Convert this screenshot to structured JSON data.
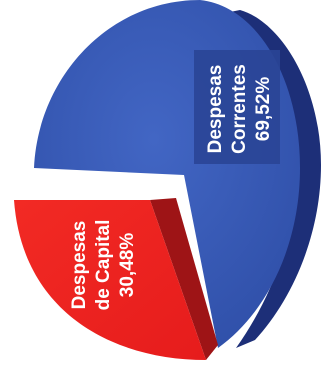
{
  "chart_data": {
    "type": "pie",
    "style": "3d-exploded",
    "title": "",
    "slices": [
      {
        "label_lines": [
          "Despesas",
          "Correntes"
        ],
        "value_label": "69,52%",
        "value": 69.52,
        "color": "#3356b3",
        "side_color": "#1d2f78",
        "exploded": false
      },
      {
        "label_lines": [
          "Despesas",
          "de Capital"
        ],
        "value_label": "30,48%",
        "value": 30.48,
        "color": "#ee2020",
        "side_color": "#9e1416",
        "exploded": true
      }
    ]
  }
}
